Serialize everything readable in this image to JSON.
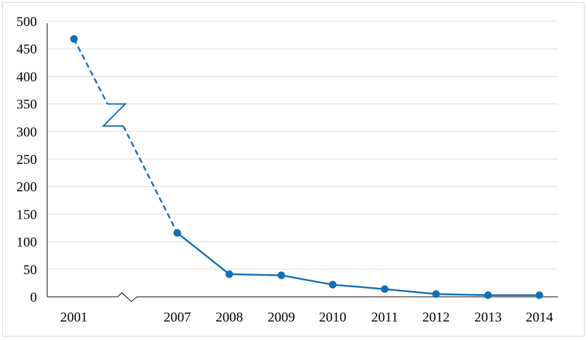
{
  "chart_data": {
    "type": "line",
    "title": "",
    "xlabel": "",
    "ylabel": "",
    "categories": [
      "2001",
      "2007",
      "2008",
      "2009",
      "2010",
      "2011",
      "2012",
      "2013",
      "2014"
    ],
    "series": [
      {
        "values": [
          468,
          116,
          41,
          39,
          22,
          14,
          5,
          3,
          3
        ]
      }
    ],
    "ylim": [
      0,
      500
    ],
    "yticks": [
      "0",
      "50",
      "100",
      "150",
      "200",
      "250",
      "300",
      "350",
      "400",
      "450",
      "500"
    ],
    "grid": true,
    "axis_break_between": [
      "2001",
      "2007"
    ],
    "legend": "none",
    "colors": {
      "series": "#0f6fb8",
      "grid": "#d9d9d9",
      "axis": "#000000"
    }
  }
}
